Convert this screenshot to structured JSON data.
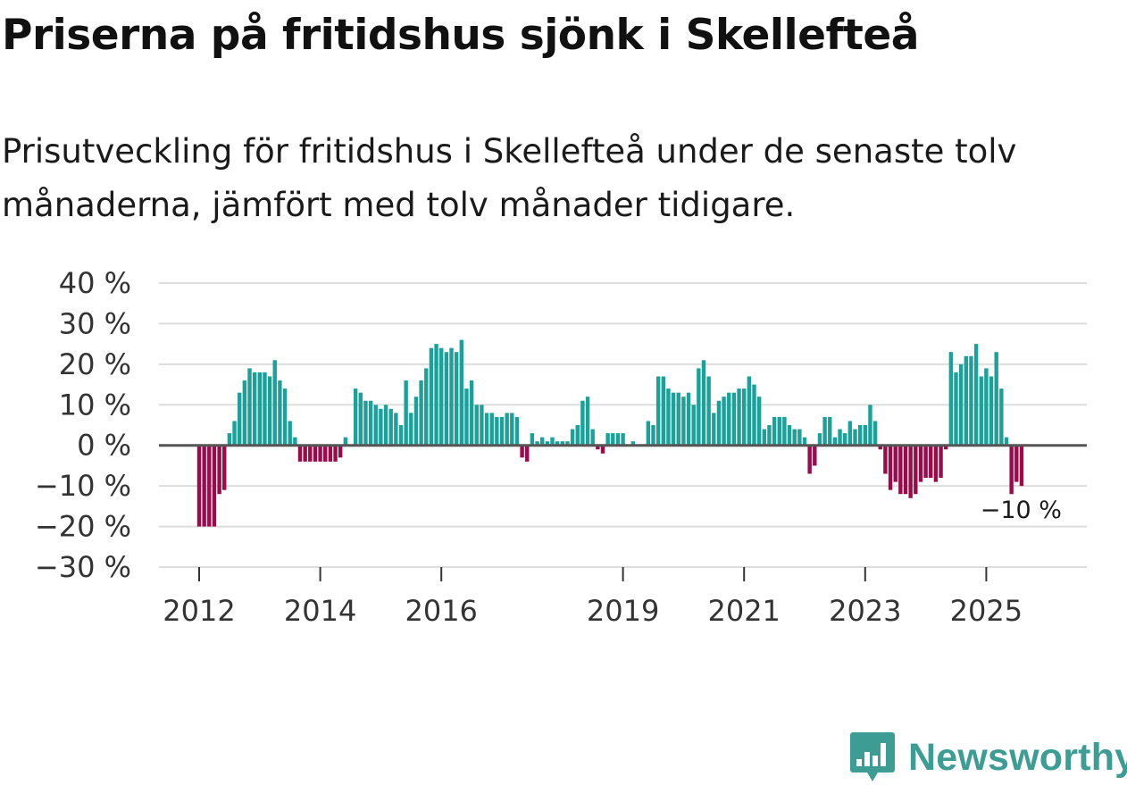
{
  "header": {
    "title": "Priserna på fritidshus sjönk i Skellefteå",
    "subtitle": "Prisutveckling för fritidshus i Skellefteå under de senaste tolv månaderna, jämfört med tolv månader tidigare."
  },
  "brand": {
    "name": "Newsworthy",
    "icon": "newsworthy-logo-icon",
    "color": "#3d9d95"
  },
  "colors": {
    "positive": "#1aa19a",
    "negative": "#9b0a4a",
    "zero_line": "#555555",
    "grid": "#dddddd"
  },
  "chart_data": {
    "type": "bar",
    "title": "Priserna på fritidshus sjönk i Skellefteå",
    "xlabel": "",
    "ylabel": "",
    "ylim": [
      -30,
      40
    ],
    "y_ticks": [
      {
        "value": 40,
        "label": "40 %"
      },
      {
        "value": 30,
        "label": "30 %"
      },
      {
        "value": 20,
        "label": "20 %"
      },
      {
        "value": 10,
        "label": "10 %"
      },
      {
        "value": 0,
        "label": "0 %"
      },
      {
        "value": -10,
        "label": "−10 %"
      },
      {
        "value": -20,
        "label": "−20 %"
      },
      {
        "value": -30,
        "label": "−30 %"
      }
    ],
    "x_ticks": [
      {
        "year": 2012,
        "label": "2012"
      },
      {
        "year": 2014,
        "label": "2014"
      },
      {
        "year": 2016,
        "label": "2016"
      },
      {
        "year": 2019,
        "label": "2019"
      },
      {
        "year": 2021,
        "label": "2021"
      },
      {
        "year": 2023,
        "label": "2023"
      },
      {
        "year": 2025,
        "label": "2025"
      }
    ],
    "start": {
      "year": 2012,
      "month": 1
    },
    "unit": "%",
    "values": [
      -20,
      -20,
      -20,
      -20,
      -12,
      -11,
      3,
      6,
      13,
      16,
      19,
      18,
      18,
      18,
      17,
      21,
      16,
      14,
      6,
      2,
      -4,
      -4,
      -4,
      -4,
      -4,
      -4,
      -4,
      -4,
      -3,
      2,
      0,
      14,
      13,
      11,
      11,
      10,
      9,
      10,
      9,
      8,
      5,
      16,
      8,
      12,
      16,
      19,
      24,
      25,
      24,
      23,
      24,
      23,
      26,
      14,
      16,
      10,
      10,
      8,
      8,
      7,
      7,
      8,
      8,
      7,
      -3,
      -4,
      3,
      1,
      2,
      1,
      2,
      1,
      1,
      1,
      4,
      5,
      11,
      12,
      4,
      -1,
      -2,
      3,
      3,
      3,
      3,
      0,
      1,
      0,
      0,
      6,
      5,
      17,
      17,
      14,
      13,
      13,
      12,
      13,
      10,
      19,
      21,
      17,
      8,
      11,
      12,
      13,
      13,
      14,
      14,
      17,
      15,
      12,
      4,
      5,
      7,
      7,
      7,
      5,
      4,
      4,
      2,
      -7,
      -5,
      3,
      7,
      7,
      2,
      4,
      3,
      6,
      4,
      5,
      5,
      10,
      6,
      -1,
      -7,
      -11,
      -9,
      -12,
      -12,
      -13,
      -12,
      -9,
      -8,
      -8,
      -9,
      -8,
      -1,
      23,
      18,
      20,
      22,
      22,
      25,
      17,
      19,
      17,
      23,
      14,
      2,
      -12,
      -9,
      -10
    ],
    "annotation": {
      "label": "−10 %",
      "value": -10
    }
  }
}
